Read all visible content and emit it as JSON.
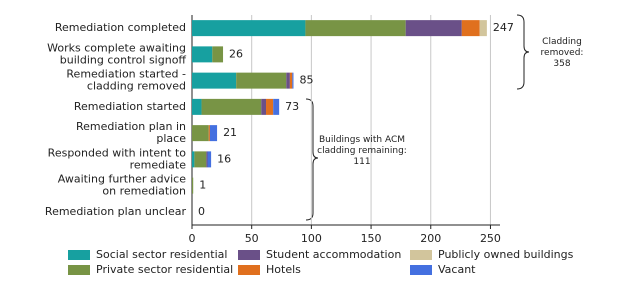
{
  "chart_data": {
    "type": "stacked-barh",
    "categories": [
      "Remediation completed",
      "Works complete awaiting\nbuilding control signoff",
      "Remediation started -\ncladding removed",
      "Remediation started",
      "Remediation plan in\nplace",
      "Responded with intent to\nremediate",
      "Awaiting further advice\non remediation",
      "Remediation plan unclear"
    ],
    "series": [
      {
        "name": "Social sector residential",
        "color": "#17a0a0",
        "values": [
          95,
          17,
          37,
          8,
          0,
          2,
          0,
          0
        ]
      },
      {
        "name": "Private sector residential",
        "color": "#789445",
        "values": [
          84,
          9,
          42,
          50,
          14,
          10,
          1,
          0
        ]
      },
      {
        "name": "Student accommodation",
        "color": "#6a5088",
        "values": [
          47,
          0,
          3,
          4,
          0,
          1,
          0,
          0
        ]
      },
      {
        "name": "Hotels",
        "color": "#e0701e",
        "values": [
          15,
          0,
          2,
          6,
          1,
          0,
          0,
          0
        ]
      },
      {
        "name": "Publicly owned buildings",
        "color": "#d2c59c",
        "values": [
          6,
          0,
          0,
          0,
          0,
          0,
          0,
          0
        ]
      },
      {
        "name": "Vacant",
        "color": "#4470e0",
        "values": [
          0,
          0,
          1,
          5,
          6,
          3,
          0,
          0
        ]
      }
    ],
    "totals": [
      247,
      26,
      85,
      73,
      21,
      16,
      1,
      0
    ],
    "xlim": [
      0,
      258
    ],
    "xticks": [
      0,
      50,
      100,
      150,
      200,
      250
    ],
    "grid": true,
    "annotations": [
      "Cladding\nremoved:\n358",
      "Buildings with ACM\ncladding remaining:\n111"
    ]
  }
}
